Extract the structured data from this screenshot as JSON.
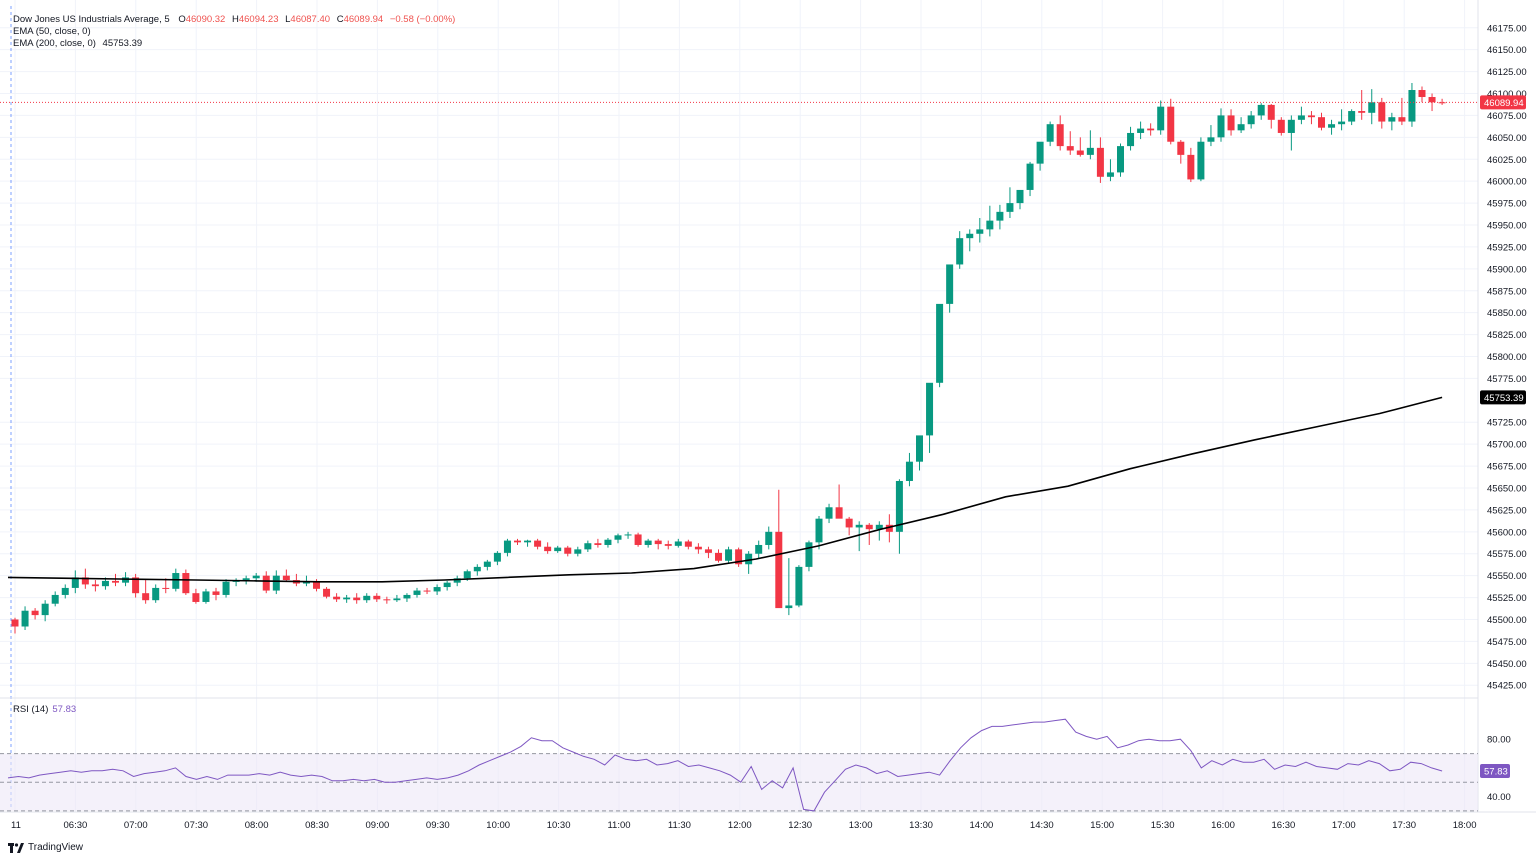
{
  "header": {
    "symbol": "Dow Jones US Industrials Average",
    "interval": "5",
    "open_label": "O",
    "open": "46090.32",
    "high_label": "H",
    "high": "46094.23",
    "low_label": "L",
    "low": "46087.40",
    "close_label": "C",
    "close": "46089.94",
    "change": "−0.58 (−0.00%)",
    "ema50_label": "EMA (50, close, 0)",
    "ema200_label": "EMA (200, close, 0)",
    "ema200_value": "45753.39"
  },
  "rsi_panel": {
    "label": "RSI (14)",
    "value": "57.83",
    "ticks": [
      "80.00",
      "40.00"
    ]
  },
  "price_tags": {
    "last_price": "46089.94",
    "ema200": "45753.39"
  },
  "branding": {
    "name": "TradingView",
    "icon": "tradingview-logo-icon"
  },
  "colors": {
    "up": "#089981",
    "down": "#f23645",
    "ema": "#000000",
    "rsi_line": "#7e57c2",
    "rsi_band": "#ede7f6",
    "last_price_tag": "#f23645"
  },
  "chart_data": [
    {
      "type": "candlestick",
      "title": "Dow Jones US Industrials Average, 5",
      "x_ticks": [
        "11",
        "06:30",
        "07:00",
        "07:30",
        "08:00",
        "08:30",
        "09:00",
        "09:30",
        "10:00",
        "10:30",
        "11:00",
        "11:30",
        "12:00",
        "12:30",
        "13:00",
        "13:30",
        "14:00",
        "14:30",
        "15:00",
        "15:30",
        "16:00",
        "16:30",
        "17:00",
        "17:30",
        "18:00"
      ],
      "y_ticks": [
        "46175.00",
        "46150.00",
        "46125.00",
        "46100.00",
        "46075.00",
        "46050.00",
        "46025.00",
        "46000.00",
        "45975.00",
        "45950.00",
        "45925.00",
        "45900.00",
        "45875.00",
        "45850.00",
        "45825.00",
        "45800.00",
        "45775.00",
        "45725.00",
        "45700.00",
        "45675.00",
        "45650.00",
        "45625.00",
        "45600.00",
        "45575.00",
        "45550.00",
        "45525.00",
        "45500.00",
        "45475.00",
        "45450.00",
        "45425.00"
      ],
      "ylim": [
        45415,
        46185
      ],
      "grid": true,
      "candles_ohlc": [
        [
          45500,
          45502,
          45484,
          45492
        ],
        [
          45492,
          45515,
          45488,
          45510
        ],
        [
          45510,
          45513,
          45500,
          45505
        ],
        [
          45505,
          45522,
          45498,
          45518
        ],
        [
          45518,
          45532,
          45515,
          45528
        ],
        [
          45528,
          45540,
          45524,
          45536
        ],
        [
          45536,
          45556,
          45530,
          45548
        ],
        [
          45548,
          45558,
          45535,
          45540
        ],
        [
          45540,
          45545,
          45532,
          45538
        ],
        [
          45538,
          45548,
          45534,
          45544
        ],
        [
          45544,
          45552,
          45538,
          45542
        ],
        [
          45542,
          45554,
          45538,
          45548
        ],
        [
          45548,
          45552,
          45525,
          45530
        ],
        [
          45530,
          45545,
          45518,
          45522
        ],
        [
          45522,
          45540,
          45519,
          45536
        ],
        [
          45536,
          45547,
          45530,
          45535
        ],
        [
          45535,
          45558,
          45532,
          45553
        ],
        [
          45553,
          45557,
          45528,
          45530
        ],
        [
          45530,
          45535,
          45518,
          45520
        ],
        [
          45520,
          45535,
          45518,
          45532
        ],
        [
          45532,
          45536,
          45522,
          45528
        ],
        [
          45528,
          45546,
          45525,
          45543
        ],
        [
          45543,
          45547,
          45538,
          45544
        ],
        [
          45544,
          45550,
          45540,
          45547
        ],
        [
          45547,
          45553,
          45543,
          45550
        ],
        [
          45550,
          45555,
          45530,
          45533
        ],
        [
          45533,
          45556,
          45529,
          45550
        ],
        [
          45550,
          45557,
          45543,
          45545
        ],
        [
          45545,
          45552,
          45538,
          45541
        ],
        [
          45541,
          45550,
          45538,
          45543
        ],
        [
          45543,
          45546,
          45532,
          45535
        ],
        [
          45535,
          45537,
          45524,
          45526
        ],
        [
          45526,
          45530,
          45520,
          45523
        ],
        [
          45523,
          45528,
          45519,
          45525
        ],
        [
          45525,
          45530,
          45518,
          45522
        ],
        [
          45522,
          45530,
          45519,
          45527
        ],
        [
          45527,
          45530,
          45520,
          45523
        ],
        [
          45523,
          45526,
          45518,
          45522
        ],
        [
          45522,
          45528,
          45520,
          45524
        ],
        [
          45524,
          45530,
          45520,
          45528
        ],
        [
          45528,
          45536,
          45525,
          45533
        ],
        [
          45533,
          45536,
          45529,
          45532
        ],
        [
          45532,
          45540,
          45528,
          45537
        ],
        [
          45537,
          45544,
          45533,
          45542
        ],
        [
          45542,
          45550,
          45538,
          45547
        ],
        [
          45547,
          45557,
          45544,
          45555
        ],
        [
          45555,
          45563,
          45550,
          45560
        ],
        [
          45560,
          45568,
          45556,
          45566
        ],
        [
          45566,
          45578,
          45562,
          45576
        ],
        [
          45576,
          45592,
          45572,
          45590
        ],
        [
          45590,
          45592,
          45585,
          45588
        ],
        [
          45588,
          45591,
          45583,
          45590
        ],
        [
          45590,
          45592,
          45580,
          45583
        ],
        [
          45583,
          45588,
          45575,
          45578
        ],
        [
          45578,
          45584,
          45576,
          45582
        ],
        [
          45582,
          45584,
          45572,
          45575
        ],
        [
          45575,
          45583,
          45572,
          45580
        ],
        [
          45580,
          45590,
          45577,
          45587
        ],
        [
          45587,
          45592,
          45582,
          45585
        ],
        [
          45585,
          45593,
          45582,
          45591
        ],
        [
          45591,
          45598,
          45587,
          45596
        ],
        [
          45596,
          45600,
          45592,
          45597
        ],
        [
          45597,
          45599,
          45583,
          45585
        ],
        [
          45585,
          45592,
          45582,
          45590
        ],
        [
          45590,
          45592,
          45580,
          45586
        ],
        [
          45586,
          45590,
          45580,
          45584
        ],
        [
          45584,
          45592,
          45582,
          45589
        ],
        [
          45589,
          45591,
          45580,
          45583
        ],
        [
          45583,
          45587,
          45575,
          45580
        ],
        [
          45580,
          45583,
          45570,
          45576
        ],
        [
          45576,
          45580,
          45565,
          45567
        ],
        [
          45567,
          45583,
          45564,
          45580
        ],
        [
          45580,
          45582,
          45560,
          45563
        ],
        [
          45563,
          45578,
          45552,
          45575
        ],
        [
          45575,
          45590,
          45570,
          45585
        ],
        [
          45585,
          45606,
          45580,
          45600
        ],
        [
          45600,
          45648,
          45520,
          45513
        ],
        [
          45513,
          45570,
          45505,
          45516
        ],
        [
          45516,
          45562,
          45514,
          45560
        ],
        [
          45560,
          45590,
          45555,
          45588
        ],
        [
          45588,
          45618,
          45580,
          45615
        ],
        [
          45615,
          45632,
          45610,
          45628
        ],
        [
          45628,
          45654,
          45618,
          45615
        ],
        [
          45615,
          45617,
          45596,
          45605
        ],
        [
          45605,
          45612,
          45578,
          45608
        ],
        [
          45608,
          45610,
          45585,
          45603
        ],
        [
          45603,
          45612,
          45590,
          45608
        ],
        [
          45608,
          45620,
          45588,
          45600
        ],
        [
          45600,
          45660,
          45575,
          45658
        ],
        [
          45658,
          45690,
          45652,
          45680
        ],
        [
          45680,
          45700,
          45670,
          45710
        ],
        [
          45710,
          45740,
          45690,
          45770
        ],
        [
          45770,
          45850,
          45765,
          45860
        ],
        [
          45860,
          45863,
          45850,
          45905
        ],
        [
          45905,
          45943,
          45900,
          45935
        ],
        [
          45935,
          45945,
          45920,
          45940
        ],
        [
          45940,
          45958,
          45930,
          45945
        ],
        [
          45945,
          45972,
          45937,
          45955
        ],
        [
          45955,
          45973,
          45945,
          45965
        ],
        [
          45965,
          45993,
          45958,
          45975
        ],
        [
          45975,
          45985,
          45968,
          45990
        ],
        [
          45990,
          46022,
          45983,
          46020
        ],
        [
          46020,
          46042,
          46012,
          46045
        ],
        [
          46045,
          46068,
          46040,
          46065
        ],
        [
          46065,
          46075,
          46035,
          46040
        ],
        [
          46040,
          46057,
          46030,
          46035
        ],
        [
          46035,
          46050,
          46028,
          46030
        ],
        [
          46030,
          46058,
          46025,
          46038
        ],
        [
          46038,
          46050,
          45998,
          46005
        ],
        [
          46005,
          46025,
          46000,
          46010
        ],
        [
          46010,
          46043,
          46005,
          46040
        ],
        [
          46040,
          46062,
          46035,
          46055
        ],
        [
          46055,
          46068,
          46048,
          46060
        ],
        [
          46060,
          46066,
          46052,
          46058
        ],
        [
          46058,
          46092,
          46053,
          46085
        ],
        [
          46085,
          46094,
          46042,
          46045
        ],
        [
          46045,
          46047,
          46020,
          46030
        ],
        [
          46030,
          46038,
          45999,
          46002
        ],
        [
          46002,
          46050,
          46000,
          46045
        ],
        [
          46045,
          46064,
          46040,
          46050
        ],
        [
          46050,
          46083,
          46045,
          46075
        ],
        [
          46075,
          46082,
          46052,
          46058
        ],
        [
          46058,
          46073,
          46055,
          46065
        ],
        [
          46065,
          46080,
          46060,
          46075
        ],
        [
          46075,
          46089,
          46070,
          46087
        ],
        [
          46087,
          46088,
          46060,
          46070
        ],
        [
          46070,
          46073,
          46052,
          46055
        ],
        [
          46055,
          46075,
          46035,
          46070
        ],
        [
          46070,
          46085,
          46065,
          46075
        ],
        [
          46075,
          46080,
          46065,
          46073
        ],
        [
          46073,
          46078,
          46058,
          46061
        ],
        [
          46061,
          46070,
          46053,
          46065
        ],
        [
          46065,
          46082,
          46058,
          46068
        ],
        [
          46068,
          46082,
          46064,
          46080
        ],
        [
          46080,
          46104,
          46070,
          46078
        ],
        [
          46078,
          46105,
          46065,
          46090
        ],
        [
          46090,
          46095,
          46060,
          46068
        ],
        [
          46068,
          46078,
          46058,
          46073
        ],
        [
          46073,
          46095,
          46064,
          46068
        ],
        [
          46068,
          46112,
          46062,
          46104
        ],
        [
          46104,
          46108,
          46090,
          46096
        ],
        [
          46096,
          46100,
          46080,
          46090
        ],
        [
          46090,
          46094,
          46087,
          46089.94
        ]
      ],
      "ema200": [
        45548,
        45547,
        45546,
        45545,
        45544,
        45543,
        45543,
        45545,
        45548,
        45551,
        45553,
        45558,
        45569,
        45584,
        45603,
        45620,
        45640,
        45652,
        45672,
        45689,
        45705,
        45720,
        45735,
        45753.39
      ]
    },
    {
      "type": "line",
      "title": "RSI (14)",
      "ylim": [
        32,
        106
      ],
      "band": [
        30,
        70
      ],
      "midline": 50,
      "values": [
        53,
        54,
        53,
        55,
        56,
        57,
        58,
        57,
        58,
        58,
        59,
        58,
        54,
        56,
        57,
        58,
        60,
        54,
        52,
        54,
        52,
        55,
        55,
        55,
        56,
        55,
        57,
        55,
        54,
        55,
        54,
        51,
        51,
        52,
        51,
        52,
        50,
        50,
        51,
        52,
        53,
        52,
        53,
        55,
        58,
        62,
        65,
        68,
        71,
        75,
        81,
        79,
        79,
        74,
        71,
        68,
        66,
        62,
        69,
        66,
        65,
        66,
        62,
        63,
        65,
        61,
        62,
        60,
        58,
        55,
        50,
        61,
        45,
        51,
        46,
        60,
        31,
        30,
        43,
        51,
        59,
        62,
        60,
        56,
        58,
        54,
        55,
        56,
        57,
        55,
        65,
        74,
        81,
        86,
        89,
        89,
        90,
        91,
        92,
        92,
        93,
        94,
        85,
        82,
        80,
        82,
        74,
        76,
        79,
        80,
        79,
        79,
        80,
        72,
        60,
        65,
        62,
        66,
        64,
        64,
        66,
        59,
        62,
        61,
        64,
        61,
        60,
        59,
        63,
        62,
        65,
        63,
        58,
        59,
        64,
        63,
        60,
        57.83
      ]
    }
  ]
}
